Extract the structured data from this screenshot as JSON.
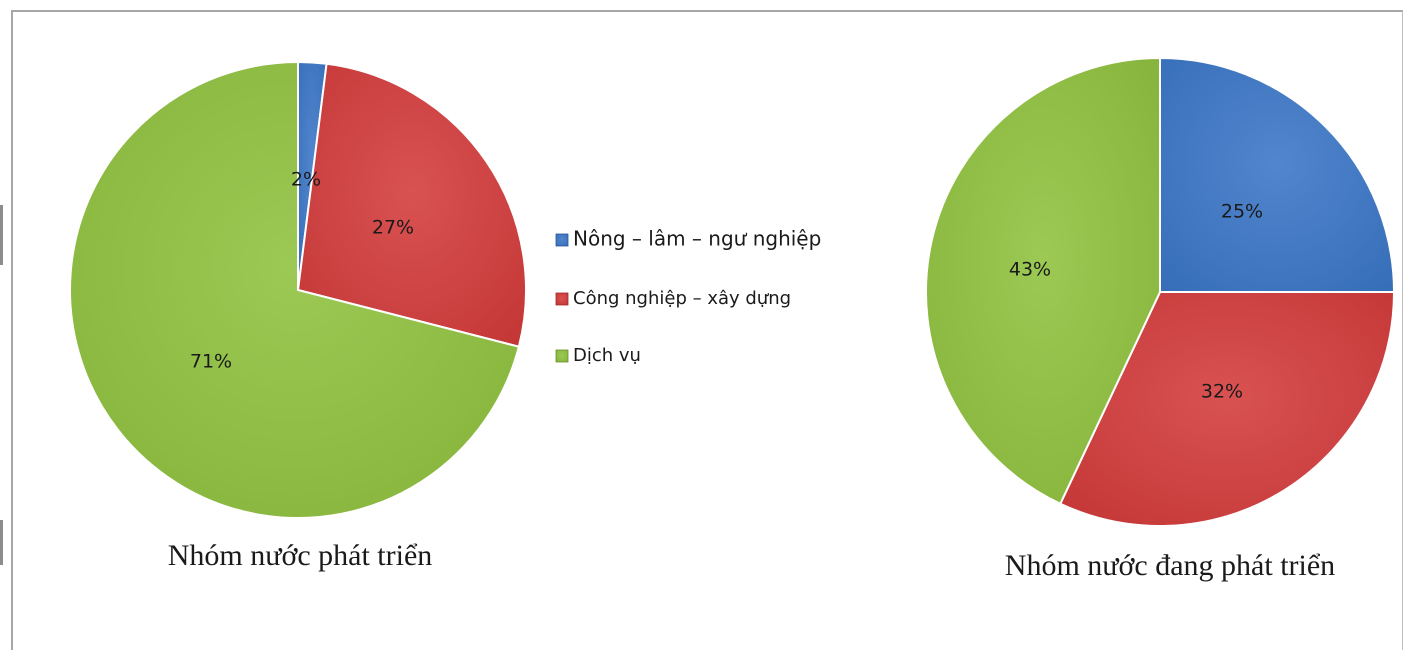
{
  "chart_data": {
    "type": "pie",
    "categories": [
      "Nông – lâm – ngư nghiệp",
      "Công nghiệp – xây dựng",
      "Dịch vụ"
    ],
    "colors": [
      "#3a76c7",
      "#d43a3a",
      "#8fc23d"
    ],
    "pies": [
      {
        "title": "Nhóm nước phát triển",
        "values": [
          2,
          27,
          71
        ],
        "labels": [
          "2%",
          "27%",
          "71%"
        ]
      },
      {
        "title": "Nhóm nước đang phát triển",
        "values": [
          25,
          32,
          43
        ],
        "labels": [
          "25%",
          "32%",
          "43%"
        ]
      }
    ],
    "legend_position": "center"
  }
}
